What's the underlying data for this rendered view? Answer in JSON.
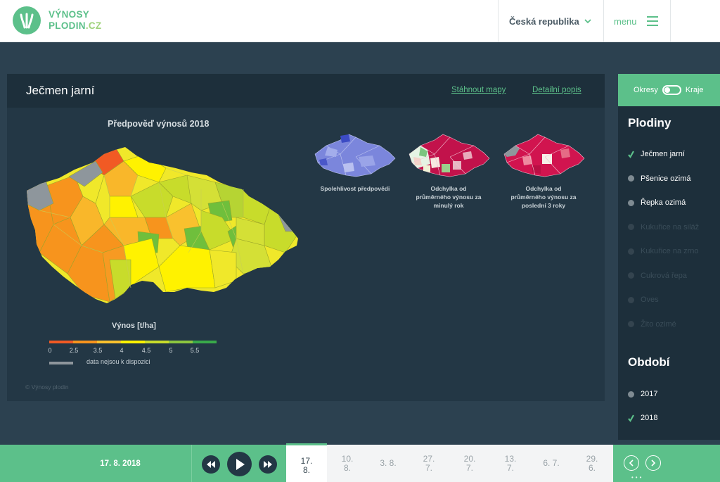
{
  "header": {
    "logo_line1": "VÝNOSY",
    "logo_line2a": "PLODIN",
    "logo_line2b": ".CZ",
    "country": "Česká republika",
    "menu": "menu"
  },
  "panel": {
    "title": "Ječmen jarní",
    "link_download": "Stáhnout mapy",
    "link_detail": "Detailní popis",
    "map_title": "Předpověď výnosů 2018",
    "mini_maps": [
      {
        "label_lines": [
          "Spolehlivost předpovědi"
        ]
      },
      {
        "label_lines": [
          "Odchylka od",
          "průměrného výnosu za",
          "minulý rok"
        ]
      },
      {
        "label_lines": [
          "Odchylka od",
          "průměrného výnosu za",
          "poslední 3 roky"
        ]
      }
    ],
    "legend_title": "Výnos [t/ha]",
    "legend_ticks": [
      "0",
      "2.5",
      "3.5",
      "4",
      "4.5",
      "5",
      "5.5"
    ],
    "legend_colors": [
      "#f15a24",
      "#f7941d",
      "#f9c12e",
      "#fff200",
      "#c8dc2b",
      "#8dc63f",
      "#39a94a",
      "#1f9a8a"
    ],
    "nodata_label": "data nejsou k dispozici",
    "copyright": "© Výnosy plodin"
  },
  "sidebar": {
    "toggle_left": "Okresy",
    "toggle_right": "Kraje",
    "crops_heading": "Plodiny",
    "crops": [
      {
        "label": "Ječmen jarní",
        "selected": true,
        "enabled": true
      },
      {
        "label": "Pšenice ozimá",
        "selected": false,
        "enabled": true
      },
      {
        "label": "Řepka ozimá",
        "selected": false,
        "enabled": true
      },
      {
        "label": "Kukuřice na siláž",
        "selected": false,
        "enabled": false
      },
      {
        "label": "Kukuřice na zrno",
        "selected": false,
        "enabled": false
      },
      {
        "label": "Cukrová řepa",
        "selected": false,
        "enabled": false
      },
      {
        "label": "Oves",
        "selected": false,
        "enabled": false
      },
      {
        "label": "Žito ozimé",
        "selected": false,
        "enabled": false
      }
    ],
    "period_heading": "Období",
    "periods": [
      {
        "label": "2017",
        "selected": false
      },
      {
        "label": "2018",
        "selected": true
      }
    ]
  },
  "bottom": {
    "current_date": "17. 8. 2018",
    "dates": [
      {
        "l1": "17.",
        "l2": "8.",
        "selected": true
      },
      {
        "l1": "10.",
        "l2": "8.",
        "selected": false
      },
      {
        "l1": "3. 8.",
        "l2": "",
        "selected": false
      },
      {
        "l1": "27.",
        "l2": "7.",
        "selected": false
      },
      {
        "l1": "20.",
        "l2": "7.",
        "selected": false
      },
      {
        "l1": "13.",
        "l2": "7.",
        "selected": false
      },
      {
        "l1": "6. 7.",
        "l2": "",
        "selected": false
      },
      {
        "l1": "29.",
        "l2": "6.",
        "selected": false
      }
    ],
    "nav_dots": "•••"
  },
  "colors": {
    "accent": "#5cc08a",
    "panel_bg": "#233745",
    "page_bg": "#2c4150"
  }
}
